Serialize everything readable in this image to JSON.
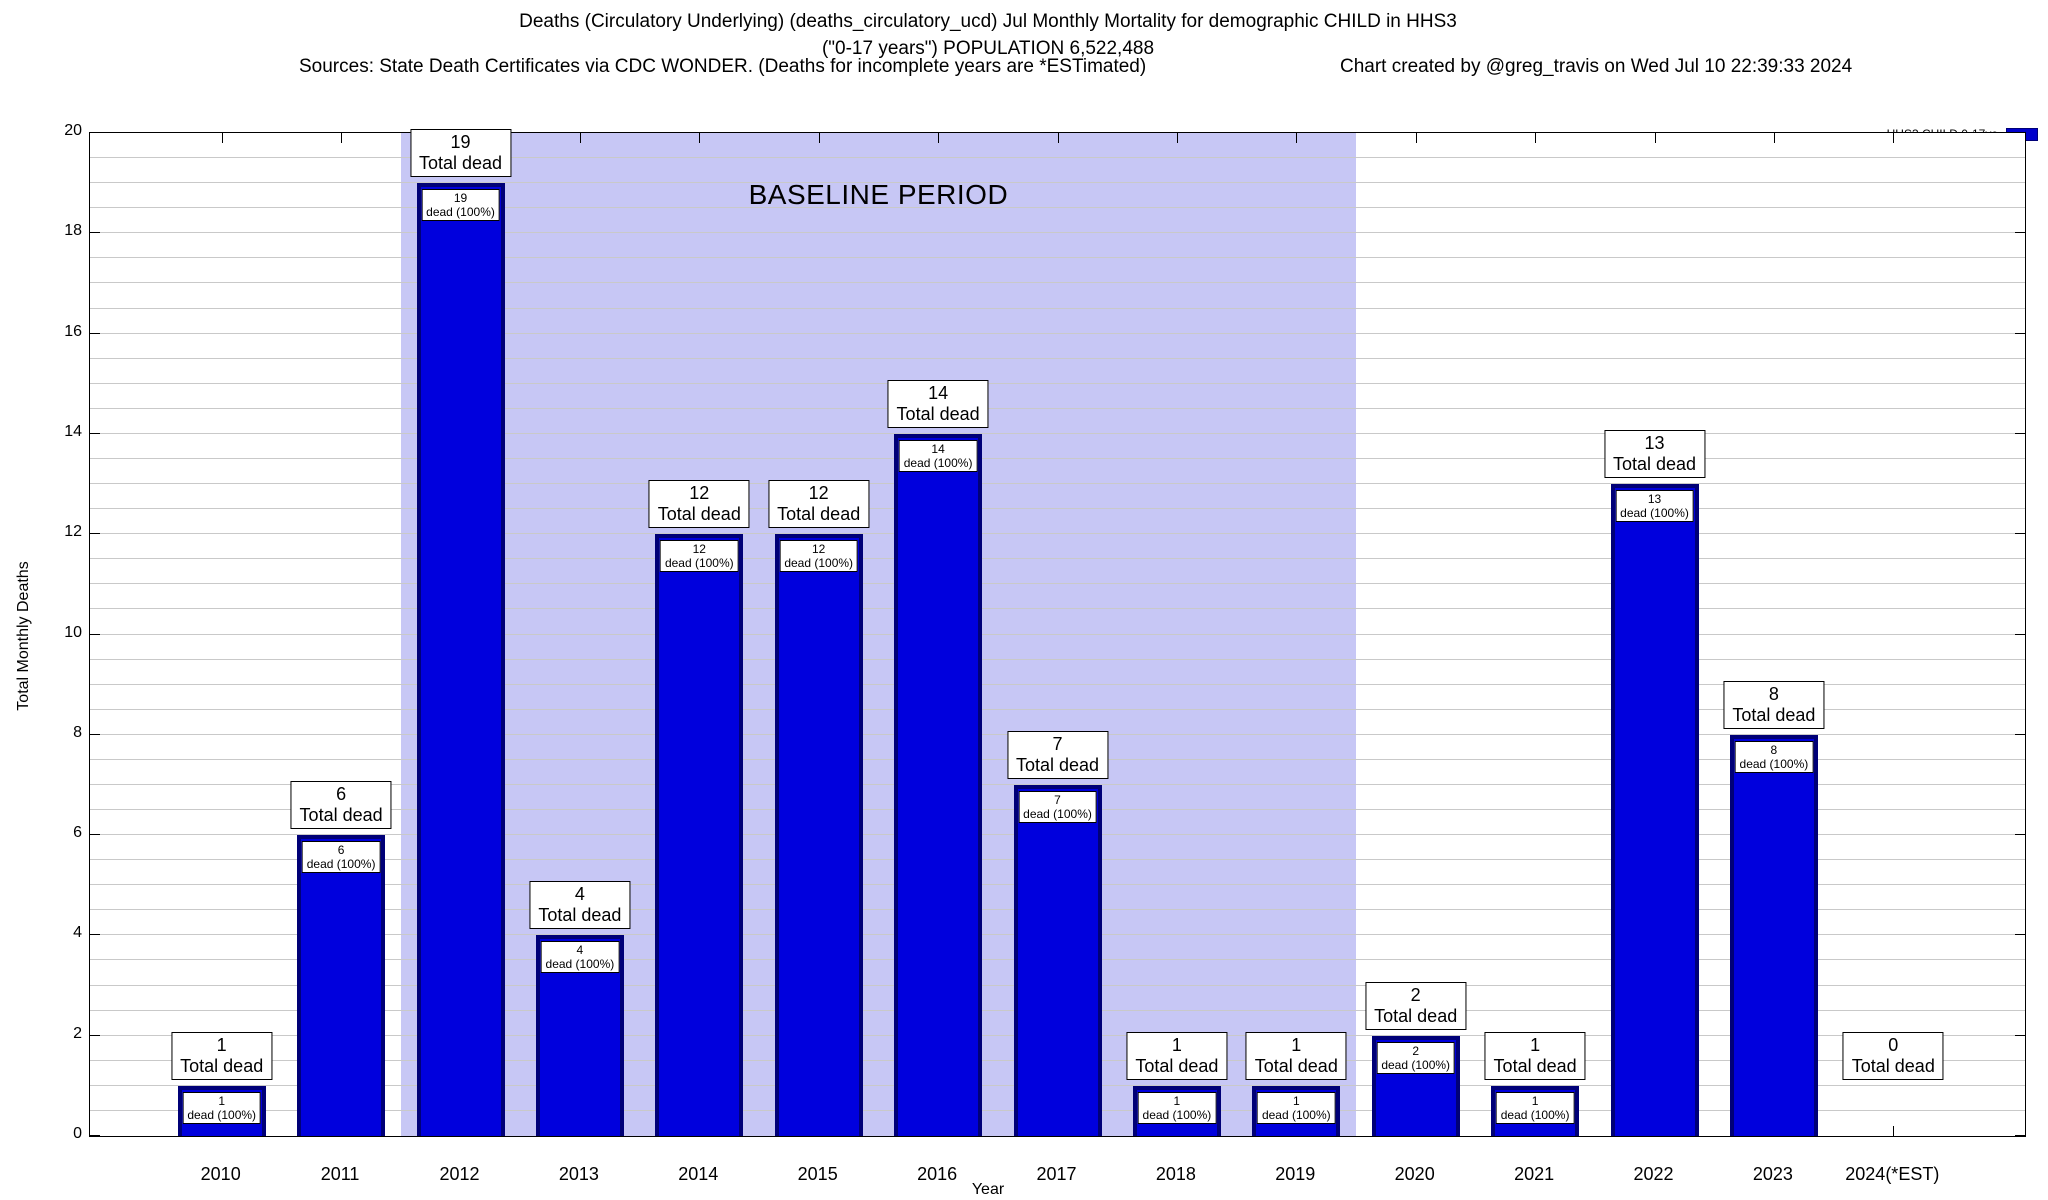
{
  "header": {
    "title_line1": "Deaths (Circulatory Underlying) (deaths_circulatory_ucd) Jul Monthly Mortality for demographic CHILD in HHS3",
    "title_line2": "(\"0-17 years\") POPULATION 6,522,488",
    "sources": "Sources: State Death Certificates via CDC WONDER. (Deaths for incomplete years are *ESTimated)",
    "credit": "Chart created by @greg_travis on Wed Jul 10 22:39:33 2024"
  },
  "legend": {
    "label": "HHS3 CHILD 0-17yo",
    "swatch_color": "#0000cc"
  },
  "chart_data": {
    "type": "bar",
    "title": "Deaths (Circulatory Underlying) (deaths_circulatory_ucd) Jul Monthly Mortality for demographic CHILD in HHS3 (\"0-17 years\") POPULATION 6,522,488",
    "xlabel": "Year",
    "ylabel": "Total Monthly Deaths",
    "ylim": [
      0,
      20
    ],
    "ytick_step": 2,
    "grid_step": 0.5,
    "grid": true,
    "legend_position": "top-right",
    "categories": [
      "2010",
      "2011",
      "2012",
      "2013",
      "2014",
      "2015",
      "2016",
      "2017",
      "2018",
      "2019",
      "2020",
      "2021",
      "2022",
      "2023",
      "2024(*EST)"
    ],
    "values": [
      1,
      6,
      19,
      4,
      12,
      12,
      14,
      7,
      1,
      1,
      2,
      1,
      13,
      8,
      0
    ],
    "series_name": "HHS3 CHILD 0-17yo",
    "bar_label_suffix": "Total dead",
    "inner_label_suffix": "dead (100%)",
    "bar_color": "#0000dd",
    "bar_border_color": "#000077",
    "baseline": {
      "label": "BASELINE PERIOD",
      "start_category": "2012",
      "end_category": "2019",
      "color": "#c7c7f5"
    }
  }
}
